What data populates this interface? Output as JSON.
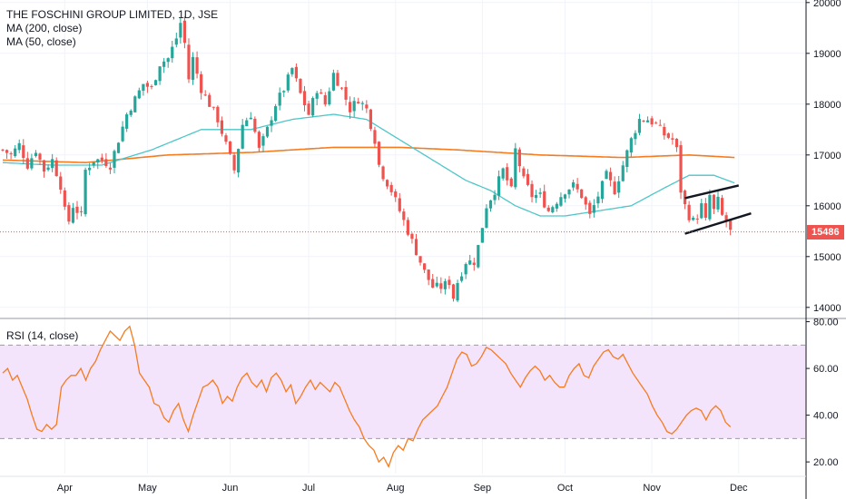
{
  "header": {
    "title": "THE FOSCHINI GROUP LIMITED, 1D, JSE",
    "ma200_label": "MA (200, close)",
    "ma50_label": "MA (50, close)",
    "rsi_label": "RSI (14, close)"
  },
  "price_tag": "15486",
  "colors": {
    "up": "#26a69a",
    "down": "#ef5350",
    "ma50": "#4dc6c8",
    "ma200": "#f57c20",
    "rsi": "#f57c20",
    "rsi_band": "#f3e3fb",
    "rsi_band_lines": "#9c9c9c",
    "trendline": "#131722"
  },
  "chart_data": [
    {
      "type": "candlestick",
      "title": "THE FOSCHINI GROUP LIMITED, 1D, JSE",
      "x_ticks": [
        "Apr",
        "May",
        "Jun",
        "Jul",
        "Aug",
        "Sep",
        "Oct",
        "Nov",
        "Dec"
      ],
      "y_ticks": [
        "14000",
        "15000",
        "16000",
        "17000",
        "18000",
        "19000",
        "20000"
      ],
      "ylim": [
        13800,
        20050
      ],
      "last_price": 15486,
      "close_path": [
        [
          0,
          17100
        ],
        [
          2,
          17000
        ],
        [
          4,
          17200
        ],
        [
          6,
          16800
        ],
        [
          8,
          17100
        ],
        [
          10,
          16700
        ],
        [
          12,
          16900
        ],
        [
          14,
          16400
        ],
        [
          15,
          15900
        ],
        [
          16,
          15700
        ],
        [
          17,
          16000
        ],
        [
          19,
          15800
        ],
        [
          20,
          16700
        ],
        [
          22,
          16900
        ],
        [
          24,
          16900
        ],
        [
          26,
          16800
        ],
        [
          28,
          17300
        ],
        [
          30,
          17800
        ],
        [
          32,
          18100
        ],
        [
          34,
          18400
        ],
        [
          36,
          18300
        ],
        [
          38,
          18800
        ],
        [
          40,
          18900
        ],
        [
          42,
          19300
        ],
        [
          43,
          19600
        ],
        [
          44,
          19200
        ],
        [
          45,
          18500
        ],
        [
          46,
          18900
        ],
        [
          48,
          18300
        ],
        [
          50,
          18000
        ],
        [
          52,
          17700
        ],
        [
          54,
          17200
        ],
        [
          56,
          16700
        ],
        [
          58,
          17600
        ],
        [
          60,
          17800
        ],
        [
          62,
          17100
        ],
        [
          64,
          17500
        ],
        [
          66,
          18000
        ],
        [
          68,
          18300
        ],
        [
          70,
          18700
        ],
        [
          72,
          18200
        ],
        [
          74,
          17800
        ],
        [
          76,
          18300
        ],
        [
          78,
          18000
        ],
        [
          80,
          18600
        ],
        [
          82,
          18300
        ],
        [
          84,
          17900
        ],
        [
          86,
          18100
        ],
        [
          88,
          17900
        ],
        [
          90,
          17300
        ],
        [
          91,
          16800
        ],
        [
          92,
          16600
        ],
        [
          94,
          16300
        ],
        [
          96,
          15900
        ],
        [
          98,
          15500
        ],
        [
          100,
          15100
        ],
        [
          102,
          14700
        ],
        [
          104,
          14400
        ],
        [
          106,
          14400
        ],
        [
          108,
          14500
        ],
        [
          109,
          14200
        ],
        [
          110,
          14500
        ],
        [
          112,
          14900
        ],
        [
          114,
          14900
        ],
        [
          115,
          15200
        ],
        [
          117,
          16000
        ],
        [
          119,
          16300
        ],
        [
          121,
          16700
        ],
        [
          123,
          16300
        ],
        [
          124,
          17100
        ],
        [
          126,
          16500
        ],
        [
          128,
          16200
        ],
        [
          130,
          16200
        ],
        [
          132,
          15900
        ],
        [
          134,
          16100
        ],
        [
          136,
          16300
        ],
        [
          138,
          16400
        ],
        [
          140,
          16200
        ],
        [
          142,
          15800
        ],
        [
          144,
          16200
        ],
        [
          146,
          16600
        ],
        [
          148,
          16300
        ],
        [
          150,
          16800
        ],
        [
          152,
          17300
        ],
        [
          154,
          17700
        ],
        [
          156,
          17700
        ],
        [
          158,
          17600
        ],
        [
          160,
          17400
        ],
        [
          162,
          17300
        ],
        [
          163,
          17100
        ],
        [
          164,
          16300
        ],
        [
          165,
          16000
        ],
        [
          166,
          15800
        ],
        [
          167,
          15700
        ],
        [
          168,
          15800
        ],
        [
          169,
          16000
        ],
        [
          170,
          15700
        ],
        [
          171,
          16200
        ],
        [
          172,
          15900
        ],
        [
          173,
          16100
        ],
        [
          174,
          15800
        ],
        [
          175,
          15700
        ],
        [
          176,
          15486
        ]
      ],
      "ma50_path": [
        [
          0,
          16850
        ],
        [
          12,
          16800
        ],
        [
          24,
          16800
        ],
        [
          36,
          17100
        ],
        [
          48,
          17500
        ],
        [
          60,
          17500
        ],
        [
          70,
          17700
        ],
        [
          80,
          17800
        ],
        [
          88,
          17700
        ],
        [
          96,
          17300
        ],
        [
          104,
          16900
        ],
        [
          112,
          16500
        ],
        [
          118,
          16300
        ],
        [
          124,
          16000
        ],
        [
          130,
          15800
        ],
        [
          136,
          15800
        ],
        [
          144,
          15900
        ],
        [
          152,
          16000
        ],
        [
          160,
          16350
        ],
        [
          166,
          16600
        ],
        [
          172,
          16600
        ],
        [
          177,
          16450
        ]
      ],
      "ma200_path": [
        [
          0,
          16900
        ],
        [
          20,
          16850
        ],
        [
          40,
          17000
        ],
        [
          60,
          17050
        ],
        [
          80,
          17150
        ],
        [
          96,
          17150
        ],
        [
          110,
          17100
        ],
        [
          130,
          17000
        ],
        [
          150,
          16950
        ],
        [
          166,
          17000
        ],
        [
          177,
          16950
        ]
      ],
      "trendlines": [
        [
          [
            165,
            16150
          ],
          [
            178,
            16400
          ]
        ],
        [
          [
            165,
            15450
          ],
          [
            181,
            15850
          ]
        ]
      ]
    },
    {
      "type": "line",
      "title": "RSI (14, close)",
      "x_ticks": [
        "Apr",
        "May",
        "Jun",
        "Jul",
        "Aug",
        "Sep",
        "Oct",
        "Nov",
        "Dec"
      ],
      "y_ticks": [
        "20.00",
        "40.00",
        "60.00",
        "80.00"
      ],
      "ylim": [
        15,
        81
      ],
      "band": [
        30,
        70
      ],
      "values": [
        58,
        60,
        55,
        57,
        52,
        47,
        40,
        34,
        33,
        36,
        34,
        36,
        52,
        55,
        57,
        57,
        60,
        55,
        60,
        63,
        68,
        72,
        76,
        74,
        72,
        76,
        78,
        70,
        58,
        55,
        52,
        45,
        44,
        39,
        37,
        42,
        45,
        38,
        33,
        40,
        46,
        52,
        53,
        55,
        52,
        45,
        48,
        46,
        52,
        56,
        58,
        54,
        52,
        55,
        50,
        56,
        58,
        55,
        50,
        53,
        45,
        48,
        52,
        55,
        51,
        54,
        52,
        50,
        54,
        52,
        47,
        42,
        38,
        35,
        30,
        27,
        25,
        20,
        22,
        18,
        24,
        27,
        25,
        30,
        29,
        34,
        38,
        40,
        42,
        44,
        48,
        52,
        58,
        64,
        67,
        66,
        61,
        62,
        65,
        69,
        68,
        66,
        64,
        62,
        58,
        55,
        52,
        56,
        59,
        61,
        59,
        55,
        57,
        54,
        52,
        52,
        57,
        60,
        62,
        57,
        56,
        61,
        64,
        67,
        68,
        65,
        64,
        66,
        62,
        58,
        55,
        52,
        49,
        44,
        40,
        37,
        33,
        32,
        34,
        37,
        40,
        42,
        43,
        42,
        38,
        42,
        44,
        42,
        37,
        35
      ]
    }
  ]
}
